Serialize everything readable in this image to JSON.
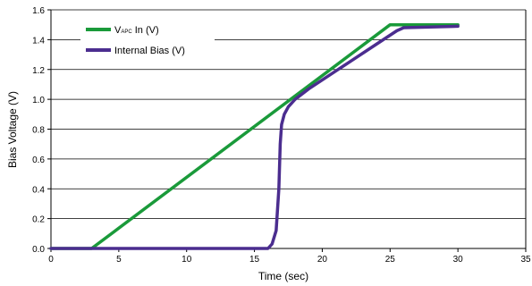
{
  "chart_data": {
    "type": "line",
    "title": "",
    "xlabel": "Time (sec)",
    "ylabel": "Bias Voltage (V)",
    "xlim": [
      0,
      35
    ],
    "ylim": [
      0,
      1.6
    ],
    "x_ticks": [
      0,
      5,
      10,
      15,
      20,
      25,
      30,
      35
    ],
    "y_ticks": [
      0.0,
      0.2,
      0.4,
      0.6,
      0.8,
      1.0,
      1.2,
      1.4,
      1.6
    ],
    "x_tick_labels": [
      "0",
      "5",
      "10",
      "15",
      "20",
      "25",
      "30",
      "35"
    ],
    "y_tick_labels": [
      "0.0",
      "0.2",
      "0.4",
      "0.6",
      "0.8",
      "1.0",
      "1.2",
      "1.4",
      "1.6"
    ],
    "grid": "horizontal",
    "legend_position": "top-left",
    "series": [
      {
        "name_main": "V",
        "name_sub": "APC",
        "name_suffix": " In (V)",
        "color": "#1a9a3a",
        "x": [
          0,
          3,
          25,
          30
        ],
        "y": [
          0,
          0,
          1.5,
          1.5
        ]
      },
      {
        "name": "Internal Bias (V)",
        "color": "#4b2d8f",
        "x": [
          0,
          16,
          16.3,
          16.6,
          16.8,
          16.9,
          17.0,
          17.2,
          17.5,
          18.0,
          19.0,
          20.0,
          22.0,
          24.0,
          25.5,
          26.0,
          30.0
        ],
        "y": [
          0,
          0,
          0.03,
          0.12,
          0.4,
          0.7,
          0.83,
          0.9,
          0.95,
          1.0,
          1.07,
          1.13,
          1.25,
          1.37,
          1.46,
          1.48,
          1.49
        ]
      }
    ]
  }
}
